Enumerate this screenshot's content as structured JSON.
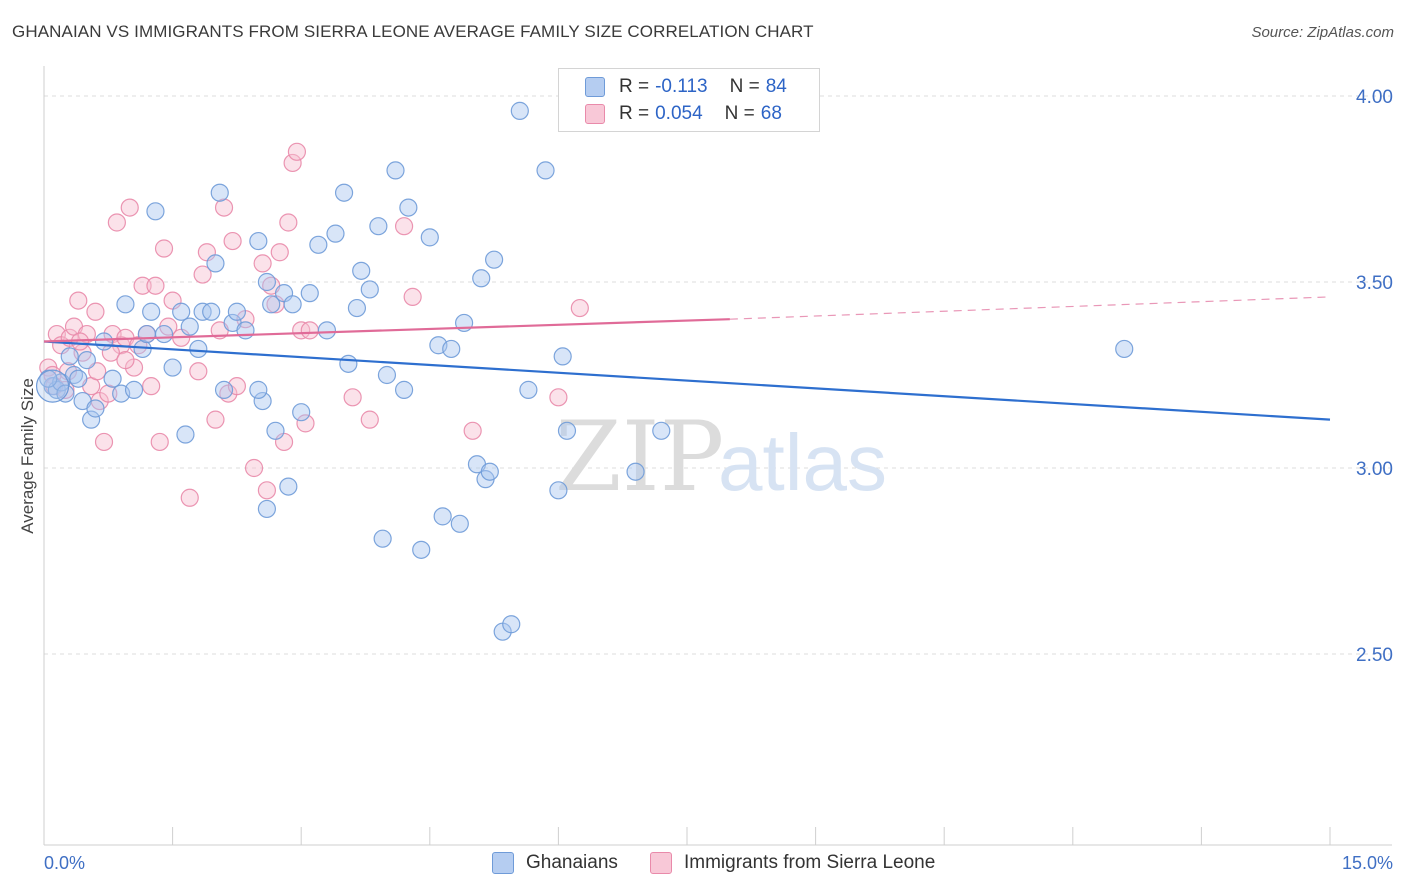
{
  "title": "GHANAIAN VS IMMIGRANTS FROM SIERRA LEONE AVERAGE FAMILY SIZE CORRELATION CHART",
  "source": "Source: ZipAtlas.com",
  "watermark": {
    "zip": "ZIP",
    "atlas": "atlas"
  },
  "colors": {
    "blue_fill": "#a9c6ef",
    "blue_stroke": "#6f9bd8",
    "blue_line": "#2e6fcf",
    "pink_fill": "#f6bfd1",
    "pink_stroke": "#e98aaa",
    "pink_line": "#e06b98",
    "grid": "#dddddd",
    "tick_text": "#3f6fc4"
  },
  "legend": {
    "rows": [
      {
        "r_label": "R =",
        "r_value": "-0.113",
        "n_label": "N =",
        "n_value": "84"
      },
      {
        "r_label": "R =",
        "r_value": "0.054",
        "n_label": "N =",
        "n_value": "68"
      }
    ]
  },
  "bottom_legend": [
    "Ghanaians",
    "Immigrants from Sierra Leone"
  ],
  "chart_data": {
    "type": "scatter",
    "ylabel": "Average Family Size",
    "xlabel": "",
    "xlim": [
      0,
      15
    ],
    "ylim": [
      2.0,
      4.1
    ],
    "x_tick_labels": [
      "0.0%",
      "15.0%"
    ],
    "y_ticks": [
      2.5,
      3.0,
      3.5,
      4.0
    ],
    "y_tick_labels": [
      "2.50",
      "3.00",
      "3.50",
      "4.00"
    ],
    "grid": true,
    "series": [
      {
        "name": "Ghanaians",
        "trend": {
          "x": [
            0.0,
            15.0
          ],
          "y": [
            3.34,
            3.13
          ]
        },
        "points": [
          [
            0.1,
            3.22
          ],
          [
            0.15,
            3.21
          ],
          [
            0.2,
            3.23
          ],
          [
            0.25,
            3.2
          ],
          [
            0.3,
            3.3
          ],
          [
            0.35,
            3.25
          ],
          [
            0.4,
            3.24
          ],
          [
            0.45,
            3.18
          ],
          [
            0.5,
            3.29
          ],
          [
            0.55,
            3.13
          ],
          [
            0.6,
            3.16
          ],
          [
            0.7,
            3.34
          ],
          [
            0.8,
            3.24
          ],
          [
            0.9,
            3.2
          ],
          [
            0.95,
            3.44
          ],
          [
            1.05,
            3.21
          ],
          [
            1.15,
            3.32
          ],
          [
            1.2,
            3.36
          ],
          [
            1.25,
            3.42
          ],
          [
            1.3,
            3.69
          ],
          [
            1.4,
            3.36
          ],
          [
            1.5,
            3.27
          ],
          [
            1.6,
            3.42
          ],
          [
            1.65,
            3.09
          ],
          [
            1.7,
            3.38
          ],
          [
            1.8,
            3.32
          ],
          [
            1.85,
            3.42
          ],
          [
            1.95,
            3.42
          ],
          [
            2.0,
            3.55
          ],
          [
            2.05,
            3.74
          ],
          [
            2.1,
            3.21
          ],
          [
            2.2,
            3.39
          ],
          [
            2.25,
            3.42
          ],
          [
            2.35,
            3.37
          ],
          [
            2.5,
            3.61
          ],
          [
            2.55,
            3.18
          ],
          [
            2.6,
            3.5
          ],
          [
            2.65,
            3.44
          ],
          [
            2.5,
            3.21
          ],
          [
            2.6,
            2.89
          ],
          [
            2.7,
            3.1
          ],
          [
            2.8,
            3.47
          ],
          [
            2.85,
            2.95
          ],
          [
            2.9,
            3.44
          ],
          [
            3.0,
            3.15
          ],
          [
            3.1,
            3.47
          ],
          [
            3.2,
            3.6
          ],
          [
            3.3,
            3.37
          ],
          [
            3.4,
            3.63
          ],
          [
            3.5,
            3.74
          ],
          [
            3.55,
            3.28
          ],
          [
            3.65,
            3.43
          ],
          [
            3.7,
            3.53
          ],
          [
            3.8,
            3.48
          ],
          [
            3.9,
            3.65
          ],
          [
            3.95,
            2.81
          ],
          [
            4.0,
            3.25
          ],
          [
            4.1,
            3.8
          ],
          [
            4.2,
            3.21
          ],
          [
            4.25,
            3.7
          ],
          [
            4.4,
            2.78
          ],
          [
            4.5,
            3.62
          ],
          [
            4.6,
            3.33
          ],
          [
            4.65,
            2.87
          ],
          [
            4.75,
            3.32
          ],
          [
            4.85,
            2.85
          ],
          [
            4.9,
            3.39
          ],
          [
            5.05,
            3.01
          ],
          [
            5.1,
            3.51
          ],
          [
            5.15,
            2.97
          ],
          [
            5.2,
            2.99
          ],
          [
            5.25,
            3.56
          ],
          [
            5.35,
            2.56
          ],
          [
            5.45,
            2.58
          ],
          [
            5.55,
            3.96
          ],
          [
            5.65,
            3.21
          ],
          [
            5.85,
            3.8
          ],
          [
            6.0,
            2.94
          ],
          [
            6.05,
            3.3
          ],
          [
            6.1,
            3.1
          ],
          [
            6.9,
            2.99
          ],
          [
            7.2,
            3.1
          ],
          [
            12.6,
            3.32
          ],
          [
            0.05,
            3.24
          ]
        ]
      },
      {
        "name": "Immigrants from Sierra Leone",
        "trend": {
          "x": [
            0.0,
            8.0
          ],
          "y": [
            3.34,
            3.4
          ],
          "dash_to": [
            15.0,
            3.46
          ]
        },
        "points": [
          [
            0.05,
            3.27
          ],
          [
            0.1,
            3.25
          ],
          [
            0.15,
            3.36
          ],
          [
            0.2,
            3.33
          ],
          [
            0.25,
            3.21
          ],
          [
            0.3,
            3.35
          ],
          [
            0.35,
            3.38
          ],
          [
            0.4,
            3.45
          ],
          [
            0.45,
            3.31
          ],
          [
            0.5,
            3.36
          ],
          [
            0.55,
            3.22
          ],
          [
            0.6,
            3.42
          ],
          [
            0.65,
            3.18
          ],
          [
            0.7,
            3.07
          ],
          [
            0.75,
            3.2
          ],
          [
            0.8,
            3.36
          ],
          [
            0.85,
            3.66
          ],
          [
            0.9,
            3.33
          ],
          [
            0.95,
            3.35
          ],
          [
            1.0,
            3.7
          ],
          [
            1.05,
            3.27
          ],
          [
            1.1,
            3.33
          ],
          [
            1.15,
            3.49
          ],
          [
            1.2,
            3.36
          ],
          [
            1.25,
            3.22
          ],
          [
            1.3,
            3.49
          ],
          [
            1.35,
            3.07
          ],
          [
            1.4,
            3.59
          ],
          [
            1.45,
            3.38
          ],
          [
            1.5,
            3.45
          ],
          [
            1.6,
            3.35
          ],
          [
            1.7,
            2.92
          ],
          [
            1.8,
            3.26
          ],
          [
            1.85,
            3.52
          ],
          [
            1.9,
            3.58
          ],
          [
            2.0,
            3.13
          ],
          [
            2.05,
            3.37
          ],
          [
            2.1,
            3.7
          ],
          [
            2.15,
            3.2
          ],
          [
            2.2,
            3.61
          ],
          [
            2.25,
            3.22
          ],
          [
            2.35,
            3.4
          ],
          [
            2.45,
            3.0
          ],
          [
            2.55,
            3.55
          ],
          [
            2.6,
            2.94
          ],
          [
            2.65,
            3.49
          ],
          [
            2.7,
            3.44
          ],
          [
            2.75,
            3.58
          ],
          [
            2.8,
            3.07
          ],
          [
            2.85,
            3.66
          ],
          [
            2.9,
            3.82
          ],
          [
            2.95,
            3.85
          ],
          [
            3.0,
            3.37
          ],
          [
            3.05,
            3.12
          ],
          [
            3.1,
            3.37
          ],
          [
            3.6,
            3.19
          ],
          [
            3.8,
            3.13
          ],
          [
            4.2,
            3.65
          ],
          [
            4.3,
            3.46
          ],
          [
            5.0,
            3.1
          ],
          [
            6.0,
            3.19
          ],
          [
            6.25,
            3.43
          ],
          [
            0.12,
            3.22
          ],
          [
            0.28,
            3.26
          ],
          [
            0.42,
            3.34
          ],
          [
            0.62,
            3.26
          ],
          [
            0.78,
            3.31
          ],
          [
            0.95,
            3.29
          ]
        ]
      }
    ]
  }
}
